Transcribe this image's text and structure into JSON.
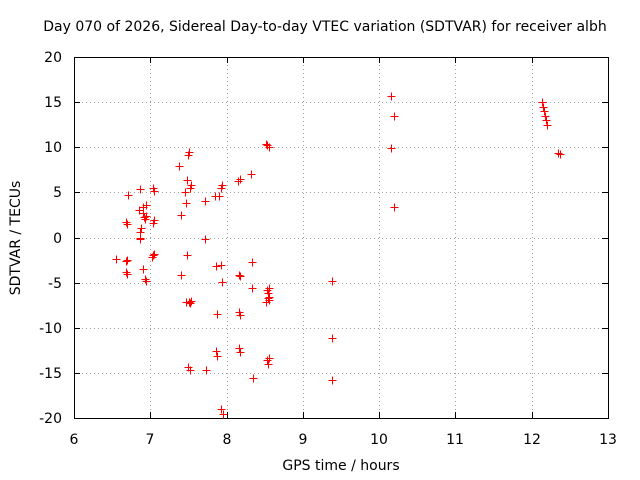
{
  "chart_data": {
    "type": "scatter",
    "title": "Day 070 of 2026, Sidereal Day-to-day VTEC variation (SDTVAR) for receiver albh",
    "xlabel": "GPS time / hours",
    "ylabel": "SDTVAR / TECUs",
    "xlim": [
      6,
      13
    ],
    "ylim": [
      -20,
      20
    ],
    "xticks": [
      6,
      7,
      8,
      9,
      10,
      11,
      12,
      13
    ],
    "yticks": [
      -20,
      -15,
      -10,
      -5,
      0,
      5,
      10,
      15,
      20
    ],
    "grid": true,
    "marker": "+",
    "marker_color": "#ff0000",
    "series": [
      {
        "name": "SDTVAR",
        "points": [
          [
            6.55,
            -2.4
          ],
          [
            6.68,
            1.7
          ],
          [
            6.7,
            1.5
          ],
          [
            6.68,
            -2.6
          ],
          [
            6.7,
            -2.5
          ],
          [
            6.68,
            -3.8
          ],
          [
            6.7,
            -4.0
          ],
          [
            6.71,
            4.7
          ],
          [
            6.86,
            5.4
          ],
          [
            6.85,
            3.1
          ],
          [
            6.86,
            0.6
          ],
          [
            6.87,
            0.0
          ],
          [
            6.87,
            -0.2
          ],
          [
            6.88,
            1.1
          ],
          [
            6.9,
            -3.5
          ],
          [
            6.9,
            3.4
          ],
          [
            6.91,
            2.7
          ],
          [
            6.92,
            2.3
          ],
          [
            6.93,
            2.0
          ],
          [
            6.94,
            3.6
          ],
          [
            6.95,
            2.4
          ],
          [
            6.93,
            -4.6
          ],
          [
            6.95,
            -4.8
          ],
          [
            7.03,
            5.5
          ],
          [
            7.05,
            5.1
          ],
          [
            7.03,
            1.6
          ],
          [
            7.05,
            1.9
          ],
          [
            7.02,
            -2.2
          ],
          [
            7.04,
            -1.9
          ],
          [
            7.05,
            -1.8
          ],
          [
            7.38,
            7.9
          ],
          [
            7.4,
            2.5
          ],
          [
            7.4,
            -4.2
          ],
          [
            7.45,
            5.0
          ],
          [
            7.47,
            3.8
          ],
          [
            7.48,
            6.4
          ],
          [
            7.48,
            -1.9
          ],
          [
            7.47,
            -7.1
          ],
          [
            7.5,
            9.1
          ],
          [
            7.51,
            9.5
          ],
          [
            7.52,
            5.5
          ],
          [
            7.53,
            5.8
          ],
          [
            7.51,
            -7.1
          ],
          [
            7.52,
            -7.3
          ],
          [
            7.53,
            -7.0
          ],
          [
            7.5,
            -14.3
          ],
          [
            7.52,
            -14.7
          ],
          [
            7.72,
            4.0
          ],
          [
            7.72,
            -0.2
          ],
          [
            7.73,
            -14.7
          ],
          [
            7.85,
            4.6
          ],
          [
            7.86,
            -3.2
          ],
          [
            7.87,
            -8.5
          ],
          [
            7.86,
            -12.6
          ],
          [
            7.88,
            -13.1
          ],
          [
            7.9,
            4.6
          ],
          [
            7.93,
            5.5
          ],
          [
            7.94,
            5.8
          ],
          [
            7.93,
            -3.0
          ],
          [
            7.94,
            -4.9
          ],
          [
            7.93,
            -19.0
          ],
          [
            7.95,
            -19.6
          ],
          [
            8.15,
            6.3
          ],
          [
            8.17,
            6.5
          ],
          [
            8.16,
            -4.2
          ],
          [
            8.17,
            -4.3
          ],
          [
            8.16,
            -8.3
          ],
          [
            8.17,
            -8.6
          ],
          [
            8.16,
            -12.2
          ],
          [
            8.17,
            -12.7
          ],
          [
            8.32,
            7.0
          ],
          [
            8.33,
            -2.7
          ],
          [
            8.33,
            -5.6
          ],
          [
            8.35,
            -15.6
          ],
          [
            8.52,
            10.4
          ],
          [
            8.53,
            10.2
          ],
          [
            8.55,
            10.0
          ],
          [
            8.53,
            -5.8
          ],
          [
            8.54,
            -6.2
          ],
          [
            8.55,
            -6.6
          ],
          [
            8.56,
            -6.9
          ],
          [
            8.52,
            -7.1
          ],
          [
            8.54,
            -6.7
          ],
          [
            8.55,
            -5.6
          ],
          [
            8.53,
            -13.6
          ],
          [
            8.54,
            -14.0
          ],
          [
            8.55,
            -13.4
          ],
          [
            9.38,
            -4.8
          ],
          [
            9.38,
            -11.1
          ],
          [
            9.38,
            -15.8
          ],
          [
            10.16,
            15.7
          ],
          [
            10.15,
            9.9
          ],
          [
            10.2,
            13.5
          ],
          [
            10.2,
            3.4
          ],
          [
            12.13,
            15.0
          ],
          [
            12.15,
            14.5
          ],
          [
            12.16,
            14.0
          ],
          [
            12.17,
            13.5
          ],
          [
            12.19,
            13.0
          ],
          [
            12.2,
            12.5
          ],
          [
            12.35,
            9.4
          ],
          [
            12.37,
            9.2
          ]
        ]
      }
    ]
  }
}
